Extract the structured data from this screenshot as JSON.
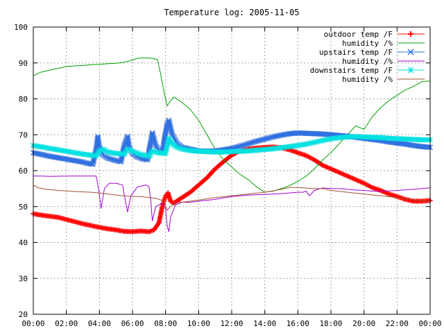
{
  "chart_data": {
    "type": "line",
    "title": "Temperature log: 2005-11-05",
    "xlabel": "",
    "ylabel": "",
    "xlim": [
      0,
      24
    ],
    "ylim": [
      20,
      100
    ],
    "grid": true,
    "legend_position": "top-right",
    "x_ticks": [
      "00:00",
      "02:00",
      "04:00",
      "06:00",
      "08:00",
      "10:00",
      "12:00",
      "14:00",
      "16:00",
      "18:00",
      "20:00",
      "22:00",
      "00:00"
    ],
    "y_ticks": [
      "20",
      "30",
      "40",
      "50",
      "60",
      "70",
      "80",
      "90",
      "100"
    ],
    "series": [
      {
        "name": "outdoor temp /F",
        "color": "#ff0000",
        "marker": "plus",
        "x": [
          0,
          0.5,
          1,
          1.5,
          2,
          2.5,
          3,
          3.5,
          4,
          4.5,
          5,
          5.5,
          6,
          6.5,
          7,
          7.3,
          7.6,
          7.8,
          8,
          8.15,
          8.3,
          8.5,
          9,
          9.5,
          10,
          10.5,
          11,
          11.5,
          12,
          12.5,
          13,
          13.5,
          14,
          14.5,
          15,
          15.5,
          16,
          16.5,
          17,
          17.5,
          18,
          18.5,
          19,
          19.5,
          20,
          20.5,
          21,
          21.5,
          22,
          22.5,
          23,
          23.5,
          24
        ],
        "y": [
          48,
          47.6,
          47.3,
          47,
          46.4,
          45.8,
          45.2,
          44.7,
          44.2,
          43.8,
          43.5,
          43.1,
          43,
          43.2,
          43,
          43.5,
          45.5,
          50,
          53,
          53.8,
          51.5,
          51,
          52.5,
          54,
          56,
          58,
          60.5,
          62.5,
          64.3,
          65.5,
          66,
          66.3,
          66.5,
          66.6,
          66.4,
          65.8,
          65,
          64.2,
          63,
          61.5,
          60.5,
          59.5,
          58.5,
          57.5,
          56.5,
          55.3,
          54.5,
          53.5,
          52.8,
          52,
          51.5,
          51.5,
          51.7
        ]
      },
      {
        "name": "humidity /%",
        "color": "#00a000",
        "marker": "none",
        "x": [
          0,
          0.5,
          1,
          1.5,
          2,
          2.5,
          3,
          3.5,
          4,
          4.5,
          5,
          5.5,
          6,
          6.3,
          6.6,
          7,
          7.5,
          7.7,
          7.9,
          8.1,
          8.3,
          8.5,
          9,
          9.5,
          10,
          10.5,
          11,
          11.5,
          12,
          12.5,
          13,
          13.5,
          14,
          14.5,
          15,
          15.5,
          16,
          16.5,
          17,
          17.5,
          18,
          18.5,
          19,
          19.5,
          20,
          20.5,
          21,
          21.5,
          22,
          22.5,
          23,
          23.5,
          24
        ],
        "y": [
          86.5,
          87.5,
          88,
          88.5,
          89,
          89.2,
          89.3,
          89.5,
          89.6,
          89.8,
          89.9,
          90.2,
          90.8,
          91.3,
          91.4,
          91.4,
          91,
          87,
          82,
          78,
          79.5,
          80.5,
          79,
          77,
          74,
          70,
          66,
          63,
          61,
          59,
          57.5,
          55.5,
          54,
          54.3,
          55,
          55.8,
          57,
          58.5,
          60.5,
          63,
          65,
          67.5,
          70,
          72.5,
          71.5,
          75,
          77.5,
          79.5,
          81,
          82.5,
          83.5,
          84.8,
          85
        ]
      },
      {
        "name": "upstairs temp /F",
        "color": "#3070e0",
        "marker": "cross",
        "x": [
          0,
          0.5,
          1,
          1.5,
          2,
          2.5,
          3,
          3.3,
          3.6,
          3.8,
          3.9,
          4,
          4.2,
          4.5,
          5,
          5.3,
          5.5,
          5.7,
          5.8,
          6,
          6.3,
          6.6,
          6.9,
          7.1,
          7.2,
          7.4,
          7.6,
          7.8,
          7.9,
          8.1,
          8.2,
          8.4,
          8.7,
          9,
          9.5,
          10,
          10.5,
          11,
          11.5,
          12,
          12.5,
          13,
          13.5,
          14,
          14.5,
          15,
          15.5,
          16,
          16.5,
          17,
          17.5,
          18,
          18.5,
          19,
          19.5,
          20,
          20.5,
          21,
          21.5,
          22,
          22.5,
          23,
          23.5,
          24
        ],
        "y": [
          65,
          64.5,
          64,
          63.6,
          63.2,
          62.8,
          62.4,
          62,
          61.8,
          66,
          69.5,
          66.5,
          64.5,
          63.5,
          62.8,
          62.5,
          67,
          69.5,
          66.5,
          64.8,
          63.8,
          63.3,
          63,
          68,
          70.5,
          67,
          65.5,
          65,
          68,
          73,
          74,
          70,
          67.5,
          66.5,
          66,
          65.5,
          65.4,
          65.5,
          65.8,
          66.2,
          66.8,
          67.5,
          68.2,
          68.8,
          69.4,
          69.9,
          70.3,
          70.5,
          70.4,
          70.3,
          70.2,
          70,
          69.8,
          69.6,
          69.3,
          69,
          68.7,
          68.4,
          68,
          67.7,
          67.4,
          67,
          66.7,
          66.5
        ]
      },
      {
        "name": "humidity /%",
        "color": "#a000d0",
        "marker": "none",
        "x": [
          0,
          0.5,
          1,
          2,
          3,
          3.5,
          3.8,
          3.95,
          4.1,
          4.3,
          4.6,
          5,
          5.4,
          5.55,
          5.7,
          5.9,
          6.3,
          6.8,
          7,
          7.1,
          7.2,
          7.4,
          7.8,
          8,
          8.1,
          8.2,
          8.3,
          8.6,
          9,
          9.5,
          10,
          11,
          12,
          13,
          14,
          15,
          15.5,
          16,
          16.3,
          16.5,
          16.7,
          17,
          17.5,
          18,
          18.5,
          19,
          19.5,
          20,
          20.5,
          21,
          22,
          23,
          24
        ],
        "y": [
          58.5,
          58.5,
          58.4,
          58.5,
          58.5,
          58.5,
          58.5,
          55,
          49.5,
          55,
          56.5,
          56.5,
          56,
          52,
          48.5,
          53,
          55.5,
          56,
          55.5,
          52,
          46,
          50,
          51,
          49.5,
          44.5,
          43,
          47,
          50.5,
          51.2,
          51.2,
          51.5,
          52,
          52.8,
          53.2,
          53.4,
          53.6,
          53.8,
          54,
          54,
          54.3,
          53,
          54.5,
          55.2,
          55,
          55,
          54.8,
          54.6,
          54.5,
          54.3,
          54.2,
          54.5,
          54.8,
          55.2
        ]
      },
      {
        "name": "downstairs temp /F",
        "color": "#00e0e0",
        "marker": "star",
        "x": [
          0,
          0.5,
          1,
          1.5,
          2,
          2.5,
          3,
          3.5,
          3.8,
          4,
          4.2,
          4.5,
          5,
          5.5,
          5.7,
          6,
          6.5,
          7,
          7.2,
          7.5,
          8,
          8.2,
          8.4,
          8.7,
          9,
          9.5,
          10,
          10.5,
          11,
          11.5,
          12,
          12.5,
          13,
          13.5,
          14,
          14.5,
          15,
          15.5,
          16,
          16.5,
          17,
          17.5,
          18,
          18.5,
          19,
          19.5,
          20,
          20.5,
          21,
          21.5,
          22,
          22.5,
          23,
          23.5,
          24
        ],
        "y": [
          67,
          66.6,
          66.2,
          65.8,
          65.4,
          65,
          64.6,
          64.3,
          64.1,
          65.5,
          66,
          65.2,
          64.8,
          64.6,
          66,
          65.4,
          64.5,
          64,
          65.5,
          65,
          64.8,
          69,
          67.5,
          66.5,
          66,
          65.6,
          65.4,
          65.3,
          65.2,
          65.2,
          65.3,
          65.4,
          65.5,
          65.7,
          65.9,
          66.1,
          66.4,
          66.7,
          67,
          67.4,
          67.9,
          68.4,
          68.9,
          69.2,
          69.4,
          69.5,
          69.4,
          69.3,
          69.2,
          69,
          68.9,
          68.8,
          68.7,
          68.6,
          68.6
        ]
      },
      {
        "name": "humidity /%",
        "color": "#a0522d",
        "marker": "none",
        "x": [
          0,
          0.3,
          0.8,
          1.5,
          2.5,
          3.5,
          4,
          4.5,
          5,
          5.5,
          6,
          6.5,
          7,
          7.5,
          7.9,
          8.1,
          8.3,
          8.5,
          9,
          10,
          11,
          12,
          13,
          14,
          15,
          15.5,
          16,
          17,
          17.5,
          18,
          19,
          20,
          21,
          22,
          22.5,
          23,
          24
        ],
        "y": [
          56,
          55.2,
          54.8,
          54.5,
          54.2,
          54,
          53.8,
          53.5,
          53.2,
          53,
          52.8,
          52.8,
          52.5,
          52.2,
          51.5,
          49,
          50,
          51,
          51.2,
          51.8,
          52.5,
          53,
          53.5,
          54,
          54.8,
          55.3,
          55.3,
          55,
          55,
          54.5,
          54,
          53.5,
          53,
          52.5,
          52.2,
          51.8,
          51.5
        ]
      }
    ]
  }
}
